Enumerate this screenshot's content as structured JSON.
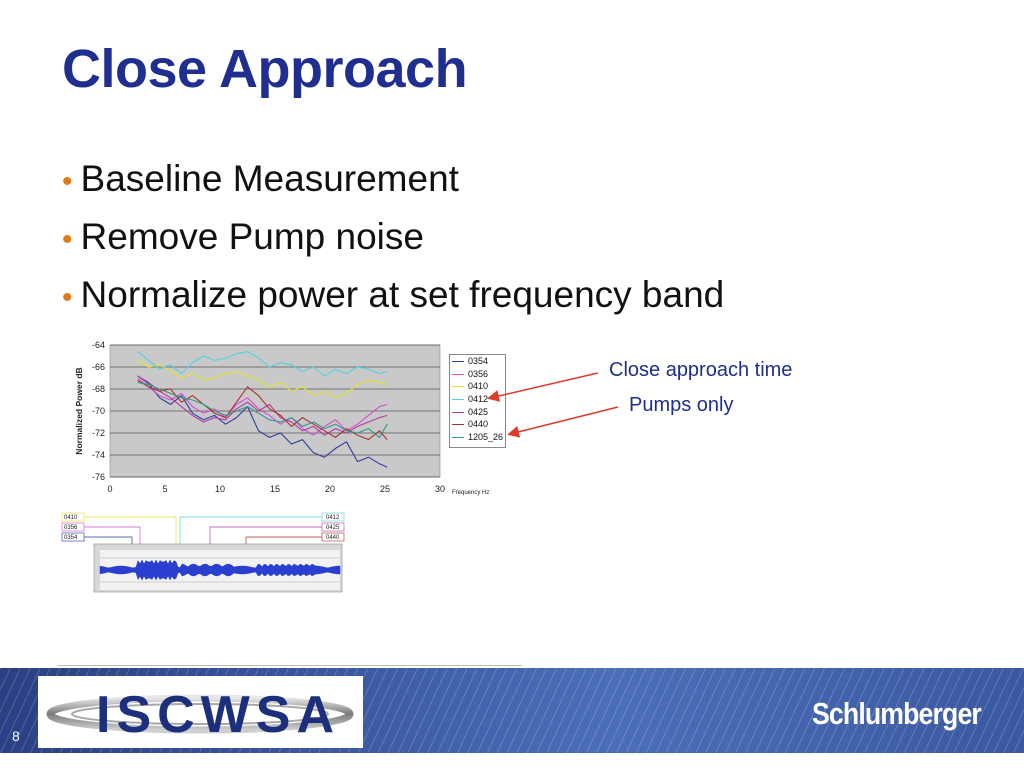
{
  "slide": {
    "title": "Close Approach",
    "bullets": [
      "Baseline Measurement",
      "Remove Pump noise",
      "Normalize power at set frequency band"
    ],
    "annotations": {
      "close_approach": "Close approach time",
      "pumps_only": "Pumps only"
    },
    "footer": {
      "page_number": "8",
      "brand": "Schlumberger",
      "logo_text": "ISCWSA"
    }
  },
  "colors": {
    "title": "#1f2e8f",
    "bullet": "#e07a1c",
    "arrow": "#e03a2a",
    "footer": "#3c5aa3"
  },
  "chart_data": {
    "type": "line",
    "ylabel": "Normalized Power dB",
    "xlabel": "Frequency Hz",
    "xlim": [
      0,
      30
    ],
    "ylim": [
      -76,
      -64
    ],
    "x_ticks": [
      0,
      5,
      10,
      15,
      20,
      25,
      30
    ],
    "y_ticks": [
      -64,
      -66,
      -68,
      -70,
      -72,
      -74,
      -76
    ],
    "grid": "horizontal",
    "legend_position": "right",
    "x": [
      2.5,
      3.5,
      4.5,
      5.5,
      6.5,
      7.5,
      8.5,
      9.5,
      10.5,
      11.5,
      12.5,
      13.5,
      14.5,
      15.5,
      16.5,
      17.5,
      18.5,
      19.5,
      20.5,
      21.5,
      22.5,
      23.5,
      24.5,
      25.2
    ],
    "series": [
      {
        "name": "0354",
        "color": "#2e3d9a",
        "values": [
          -66.8,
          -67.5,
          -68.8,
          -69.4,
          -68.6,
          -70.2,
          -70.8,
          -70.4,
          -71.2,
          -70.6,
          -69.6,
          -71.8,
          -72.4,
          -72.0,
          -73.0,
          -72.6,
          -73.8,
          -74.2,
          -73.4,
          -72.8,
          -74.6,
          -74.2,
          -74.8,
          -75.1
        ]
      },
      {
        "name": "0356",
        "color": "#d64fd0",
        "values": [
          -67.0,
          -67.8,
          -68.6,
          -69.0,
          -68.4,
          -69.6,
          -70.2,
          -69.8,
          -70.6,
          -69.4,
          -68.8,
          -69.8,
          -70.4,
          -71.2,
          -70.6,
          -71.6,
          -72.2,
          -71.4,
          -70.8,
          -71.8,
          -71.2,
          -70.4,
          -69.6,
          -69.4
        ]
      },
      {
        "name": "0410",
        "color": "#e6e22e",
        "values": [
          -65.4,
          -66.0,
          -65.8,
          -66.4,
          -67.0,
          -66.6,
          -67.2,
          -67.0,
          -66.6,
          -66.4,
          -66.8,
          -67.2,
          -67.8,
          -67.4,
          -68.2,
          -67.8,
          -68.6,
          -68.2,
          -68.8,
          -68.4,
          -67.6,
          -67.2,
          -67.4,
          -67.6
        ]
      },
      {
        "name": "0412",
        "color": "#4fd3e0",
        "values": [
          -64.6,
          -65.4,
          -66.2,
          -65.8,
          -66.6,
          -65.6,
          -65.0,
          -65.4,
          -65.2,
          -64.8,
          -64.6,
          -65.2,
          -66.0,
          -65.6,
          -65.8,
          -66.4,
          -66.0,
          -66.8,
          -66.2,
          -66.6,
          -66.0,
          -66.2,
          -66.6,
          -66.4
        ]
      },
      {
        "name": "0425",
        "color": "#b13aa8",
        "values": [
          -66.8,
          -67.4,
          -68.2,
          -68.8,
          -69.6,
          -70.4,
          -71.0,
          -70.6,
          -70.8,
          -69.8,
          -69.2,
          -70.0,
          -69.4,
          -70.6,
          -71.0,
          -71.8,
          -71.4,
          -72.2,
          -71.6,
          -72.0,
          -71.4,
          -71.0,
          -70.6,
          -70.4
        ]
      },
      {
        "name": "0440",
        "color": "#a83232",
        "values": [
          -67.2,
          -67.8,
          -68.2,
          -68.0,
          -69.2,
          -68.6,
          -69.4,
          -70.2,
          -70.6,
          -69.2,
          -67.8,
          -68.6,
          -69.8,
          -70.4,
          -71.4,
          -70.6,
          -71.2,
          -71.8,
          -72.4,
          -71.6,
          -72.2,
          -72.6,
          -71.8,
          -72.6
        ]
      },
      {
        "name": "1205_26",
        "color": "#2f9a8a",
        "values": [
          -67.4,
          -67.6,
          -68.0,
          -68.4,
          -68.8,
          -69.0,
          -69.4,
          -70.0,
          -70.4,
          -70.0,
          -69.6,
          -70.2,
          -70.8,
          -71.0,
          -70.6,
          -71.4,
          -71.0,
          -71.6,
          -71.2,
          -71.8,
          -72.0,
          -71.6,
          -72.4,
          -71.2
        ]
      }
    ]
  },
  "timeline": {
    "left_labels": [
      "0410",
      "0356",
      "0354"
    ],
    "right_labels": [
      "0412",
      "0425",
      "0440"
    ]
  }
}
